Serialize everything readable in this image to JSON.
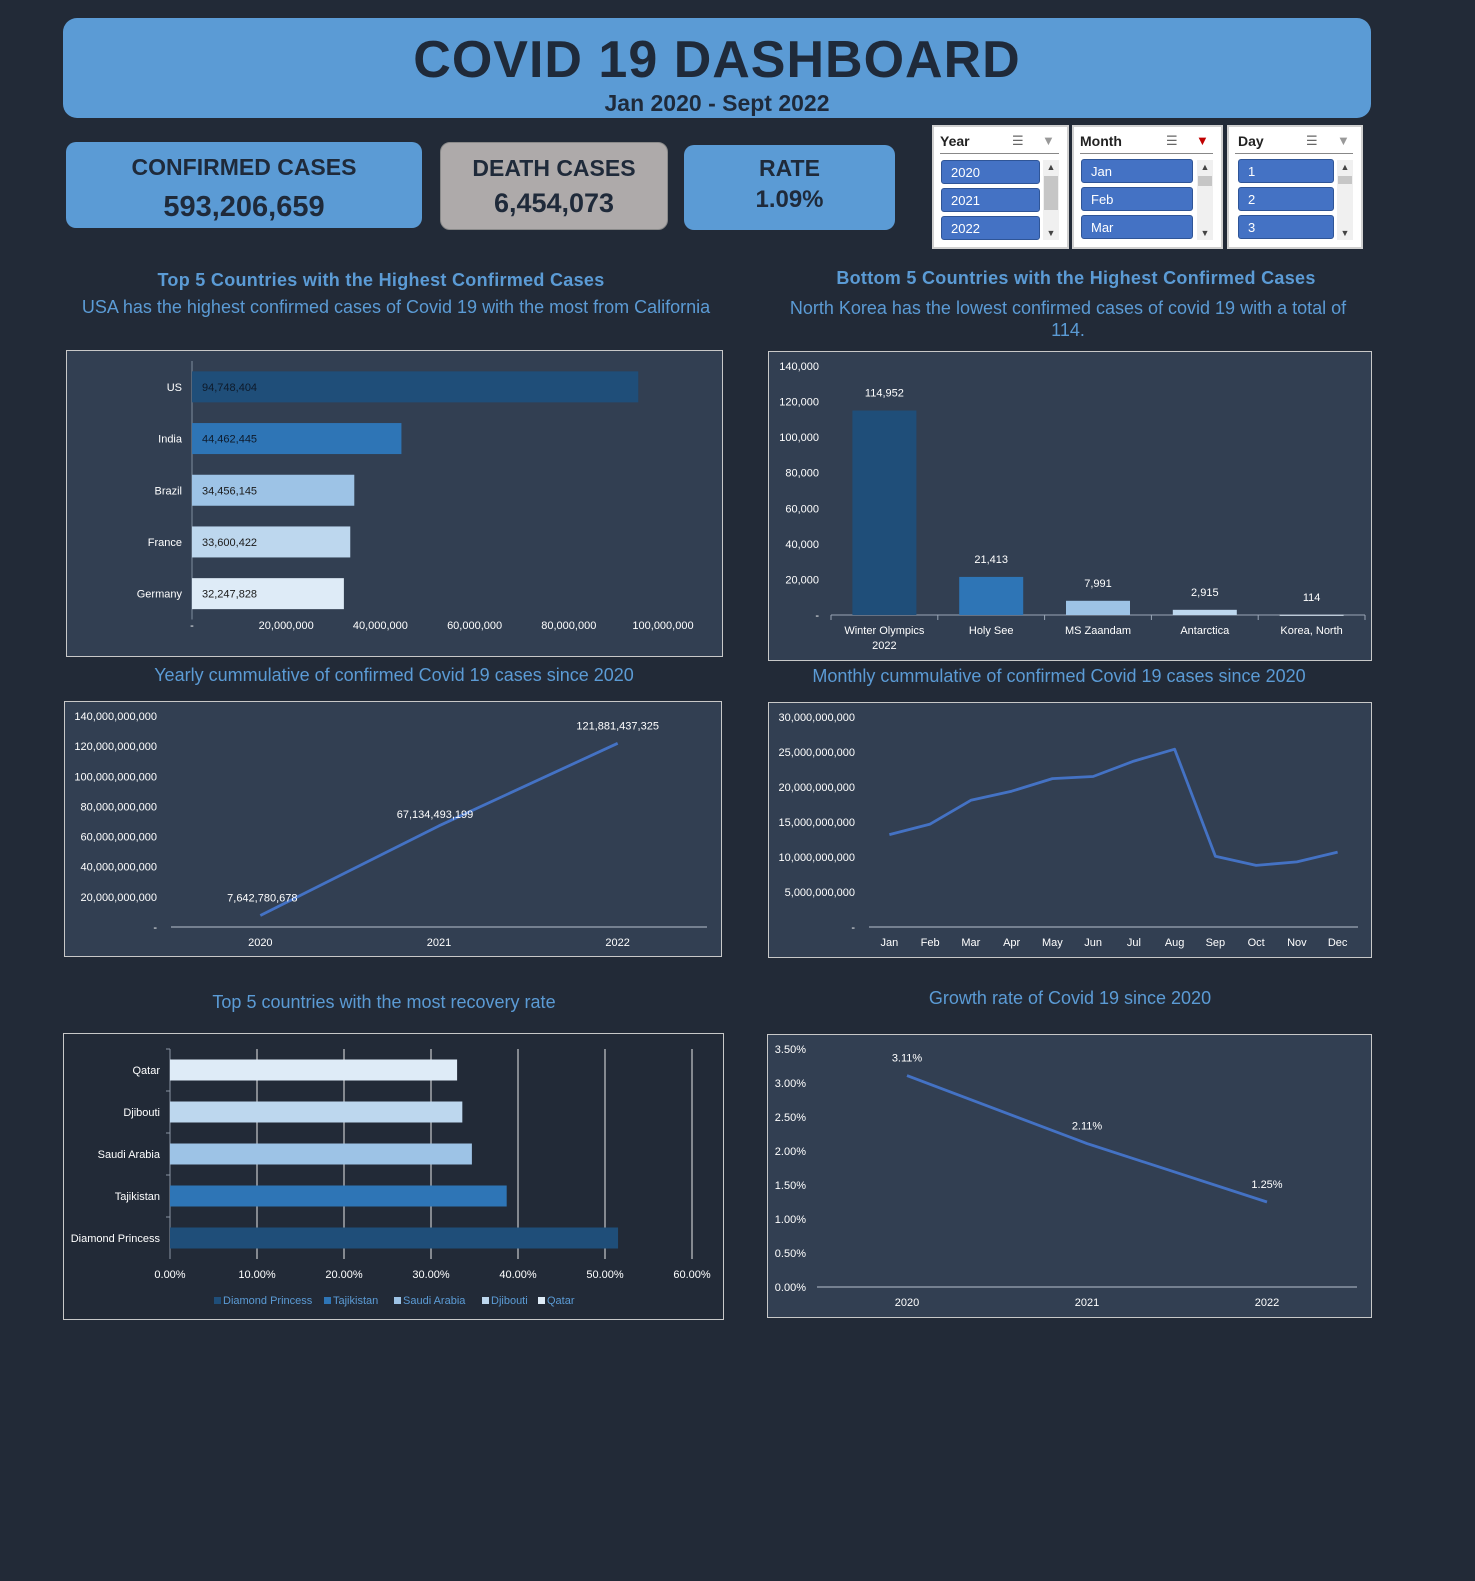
{
  "header": {
    "title": "COVID 19 DASHBOARD",
    "subtitle": "Jan 2020 - Sept 2022"
  },
  "kpis": {
    "confirmed": {
      "label": "CONFIRMED CASES",
      "value": "593,206,659"
    },
    "deaths": {
      "label": "DEATH CASES",
      "value": "6,454,073"
    },
    "rate": {
      "label": "RATE",
      "value": "1.09%"
    }
  },
  "colors": {
    "background": "#222a37",
    "panel": "#323f52",
    "accent": "#5b9bd5",
    "kpi_grey": "#aeaaaa",
    "slicer_item": "#4472c4"
  },
  "slicers": {
    "year": {
      "title": "Year",
      "items": [
        "2020",
        "2021",
        "2022"
      ]
    },
    "month": {
      "title": "Month",
      "items": [
        "Jan",
        "Feb",
        "Mar"
      ]
    },
    "day": {
      "title": "Day",
      "items": [
        "1",
        "2",
        "3"
      ]
    },
    "icons": [
      "multi-select-icon",
      "clear-filter-icon",
      "scroll-up-icon",
      "scroll-down-icon"
    ]
  },
  "titles": {
    "top5": "Top 5 Countries with the Highest Confirmed Cases",
    "top5_sub": "USA has the highest confirmed cases of Covid 19 with the most from California",
    "bottom5": "Bottom 5 Countries with the Highest Confirmed Cases",
    "bottom5_sub1": "North Korea has the lowest confirmed cases of covid 19 with a total of",
    "bottom5_sub2": "114.",
    "yearly": "Yearly cummulative of confirmed Covid 19 cases since 2020",
    "monthly": "Monthly cummulative of confirmed Covid 19 cases since 2020",
    "recovery": "Top 5 countries with the most recovery rate",
    "growth": "Growth rate of Covid 19 since 2020"
  },
  "chart_data": [
    {
      "id": "top5",
      "type": "bar",
      "orientation": "horizontal",
      "categories": [
        "US",
        "India",
        "Brazil",
        "France",
        "Germany"
      ],
      "values": [
        94748404,
        44462445,
        34456145,
        33600422,
        32247828
      ],
      "value_labels": [
        "94,748,404",
        "44,462,445",
        "34,456,145",
        "33,600,422",
        "32,247,828"
      ],
      "colors": [
        "#1f4e79",
        "#2e75b6",
        "#9dc3e6",
        "#bdd7ee",
        "#deebf7"
      ],
      "xlim": [
        0,
        100000000
      ],
      "x_ticks": [
        "-",
        "20,000,000",
        "40,000,000",
        "60,000,000",
        "80,000,000",
        "100,000,000"
      ],
      "grid": false
    },
    {
      "id": "bottom5",
      "type": "bar",
      "categories": [
        [
          "Winter Olympics",
          "2022"
        ],
        [
          "Holy See"
        ],
        [
          "MS Zaandam"
        ],
        [
          "Antarctica"
        ],
        [
          "Korea, North"
        ]
      ],
      "values": [
        114952,
        21413,
        7991,
        2915,
        114
      ],
      "value_labels": [
        "114,952",
        "21,413",
        "7,991",
        "2,915",
        "114"
      ],
      "colors": [
        "#1f4e79",
        "#2e75b6",
        "#9dc3e6",
        "#bdd7ee",
        "#deebf7"
      ],
      "ylim": [
        0,
        140000
      ],
      "y_ticks": [
        "-",
        "20,000",
        "40,000",
        "60,000",
        "80,000",
        "100,000",
        "120,000",
        "140,000"
      ],
      "grid": false
    },
    {
      "id": "yearly",
      "type": "line",
      "x": [
        "2020",
        "2021",
        "2022"
      ],
      "values": [
        7642780678,
        67134493199,
        121881437325
      ],
      "value_labels": [
        "7,642,780,678",
        "67,134,493,199",
        "121,881,437,325"
      ],
      "ylim": [
        0,
        140000000000
      ],
      "y_ticks": [
        "-",
        "20,000,000,000",
        "40,000,000,000",
        "60,000,000,000",
        "80,000,000,000",
        "100,000,000,000",
        "120,000,000,000",
        "140,000,000,000"
      ],
      "grid": false
    },
    {
      "id": "monthly",
      "type": "line",
      "x": [
        "Jan",
        "Feb",
        "Mar",
        "Apr",
        "May",
        "Jun",
        "Jul",
        "Aug",
        "Sep",
        "Oct",
        "Nov",
        "Dec"
      ],
      "values": [
        13200000000,
        14700000000,
        18100000000,
        19400000000,
        21200000000,
        21500000000,
        23700000000,
        25400000000,
        10100000000,
        8800000000,
        9300000000,
        10700000000
      ],
      "ylim": [
        0,
        30000000000
      ],
      "y_ticks": [
        "-",
        "5,000,000,000",
        "10,000,000,000",
        "15,000,000,000",
        "20,000,000,000",
        "25,000,000,000",
        "30,000,000,000"
      ],
      "grid": false
    },
    {
      "id": "recovery",
      "type": "bar",
      "orientation": "horizontal",
      "categories": [
        "Qatar",
        "Djibouti",
        "Saudi Arabia",
        "Tajikistan",
        "Diamond Princess"
      ],
      "values": [
        0.33,
        0.336,
        0.347,
        0.387,
        0.515
      ],
      "colors": [
        "#deebf7",
        "#bdd7ee",
        "#9dc3e6",
        "#2e75b6",
        "#1f4e79"
      ],
      "xlim": [
        0,
        0.6
      ],
      "x_ticks": [
        "0.00%",
        "10.00%",
        "20.00%",
        "30.00%",
        "40.00%",
        "50.00%",
        "60.00%"
      ],
      "legend": [
        "Diamond Princess",
        "Tajikistan",
        "Saudi Arabia",
        "Djibouti",
        "Qatar"
      ],
      "legend_colors": [
        "#1f4e79",
        "#2e75b6",
        "#9dc3e6",
        "#bdd7ee",
        "#deebf7"
      ],
      "legend_position": "bottom",
      "grid": true
    },
    {
      "id": "growth",
      "type": "line",
      "x": [
        "2020",
        "2021",
        "2022"
      ],
      "values": [
        0.0311,
        0.0211,
        0.0125
      ],
      "value_labels": [
        "3.11%",
        "2.11%",
        "1.25%"
      ],
      "ylim": [
        0,
        0.035
      ],
      "y_ticks": [
        "0.00%",
        "0.50%",
        "1.00%",
        "1.50%",
        "2.00%",
        "2.50%",
        "3.00%",
        "3.50%"
      ],
      "grid": false
    }
  ]
}
